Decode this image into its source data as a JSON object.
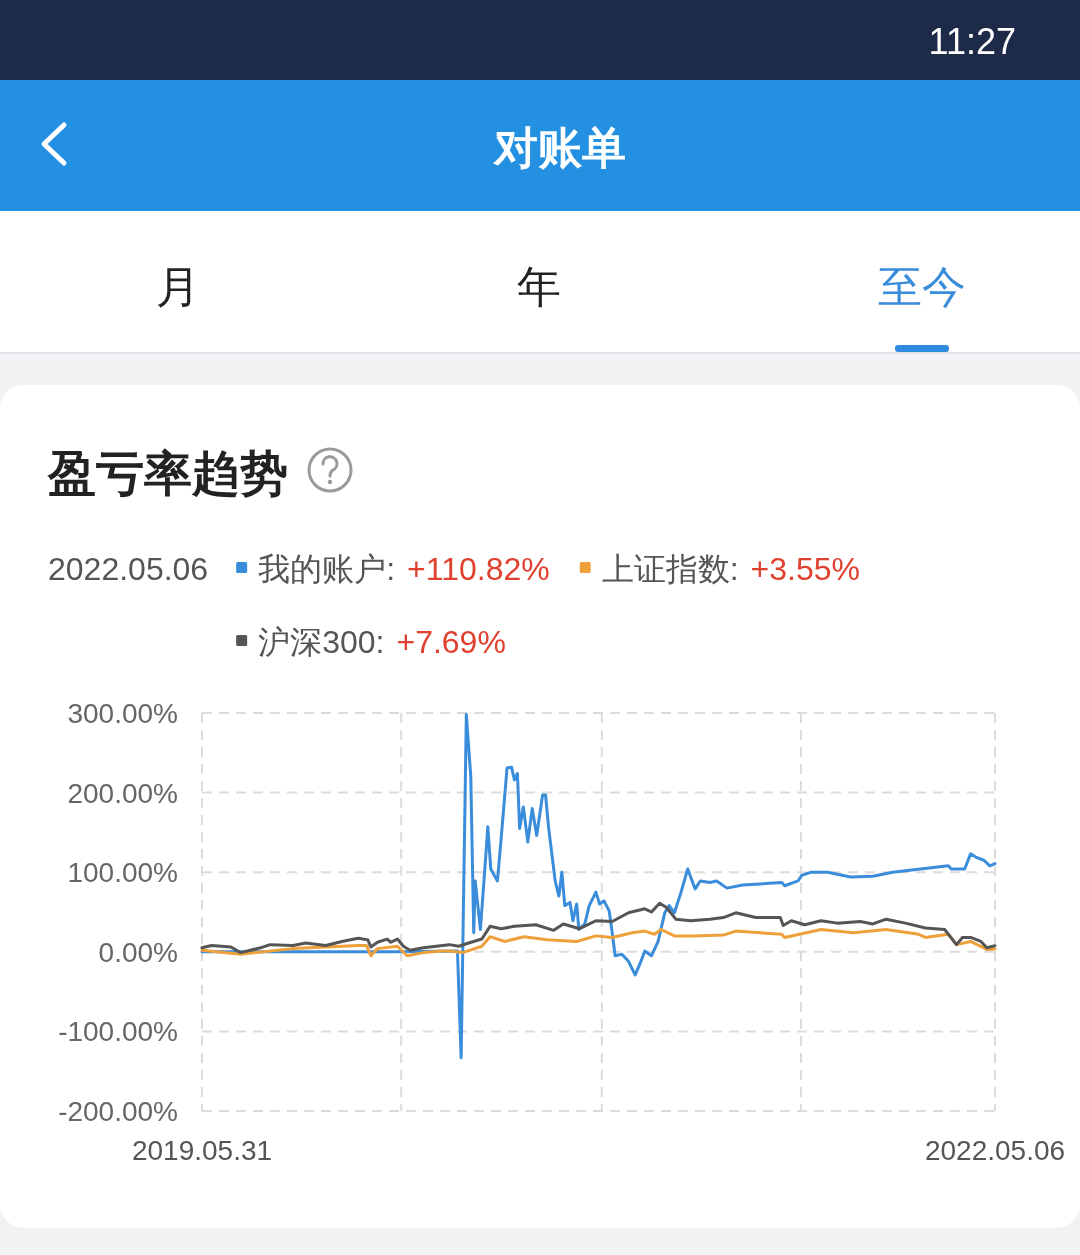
{
  "chart_data": {
    "type": "line",
    "title": "盈亏率趋势",
    "subtitle": "2022.05.06",
    "annotations": [
      "+110.82%",
      "+3.55%",
      "+7.69%",
      "11:27",
      "对账单",
      "月",
      "年",
      "至今"
    ],
    "xlim": [
      "2019-05-31",
      "2022-05-06"
    ],
    "xticks": [
      {
        "value": "2019-05-31",
        "label": "2019.05.31"
      },
      {
        "value": "2020-02-24",
        "label": null
      },
      {
        "value": "2020-11-21",
        "label": null
      },
      {
        "value": "2021-08-17",
        "label": null
      },
      {
        "value": "2022-05-06",
        "label": "2022.05.06"
      }
    ],
    "ylim": [
      -200,
      300
    ],
    "yticks": [
      {
        "value": -200,
        "label": "-200.00%"
      },
      {
        "value": -100,
        "label": "-100.00%"
      },
      {
        "value": 0,
        "label": "0.00%"
      },
      {
        "value": 100,
        "label": "100.00%"
      },
      {
        "value": 200,
        "label": "200.00%"
      },
      {
        "value": 300,
        "label": "300.00%"
      }
    ],
    "grid": true,
    "legend": "top left",
    "line_style": "solid",
    "series": [
      {
        "name": "我的账户:",
        "color": "#3a8ddb",
        "x": [
          "2019-05-31",
          "2019-10-07",
          "2020-02-16",
          "2020-05-10",
          "2020-05-15",
          "2020-05-22",
          "2020-05-28",
          "2020-06-01",
          "2020-06-03",
          "2020-06-10",
          "2020-06-17",
          "2020-06-20",
          "2020-06-24",
          "2020-07-03",
          "2020-07-08",
          "2020-07-16",
          "2020-07-22",
          "2020-07-26",
          "2020-07-30",
          "2020-08-02",
          "2020-08-07",
          "2020-08-13",
          "2020-08-19",
          "2020-08-25",
          "2020-09-02",
          "2020-09-06",
          "2020-09-10",
          "2020-09-19",
          "2020-09-24",
          "2020-09-28",
          "2020-10-02",
          "2020-10-09",
          "2020-10-13",
          "2020-10-18",
          "2020-10-21",
          "2020-10-29",
          "2020-11-04",
          "2020-11-13",
          "2020-11-18",
          "2020-11-24",
          "2020-12-01",
          "2020-12-05",
          "2020-12-09",
          "2020-12-18",
          "2020-12-27",
          "2021-01-05",
          "2021-01-12",
          "2021-01-18",
          "2021-01-27",
          "2021-02-05",
          "2021-02-14",
          "2021-02-20",
          "2021-02-27",
          "2021-03-08",
          "2021-03-17",
          "2021-03-27",
          "2021-04-03",
          "2021-04-16",
          "2021-04-25",
          "2021-05-09",
          "2021-05-30",
          "2021-07-22",
          "2021-07-26",
          "2021-08-13",
          "2021-08-18",
          "2021-08-31",
          "2021-09-22",
          "2021-10-23",
          "2021-11-22",
          "2021-12-19",
          "2022-03-04",
          "2022-03-08",
          "2022-03-26",
          "2022-04-03",
          "2022-04-10",
          "2022-04-21",
          "2022-04-29",
          "2022-05-06"
        ],
        "values": [
          0,
          0,
          0,
          1,
          -133,
          298,
          220,
          24,
          89,
          28,
          117,
          157,
          104,
          89,
          142,
          231,
          232,
          216,
          224,
          155,
          182,
          138,
          180,
          146,
          197,
          197,
          157,
          89,
          70,
          100,
          58,
          62,
          39,
          60,
          28,
          35,
          58,
          75,
          60,
          64,
          51,
          24,
          -5,
          -3,
          -12,
          -29,
          -14,
          1,
          -5,
          13,
          49,
          58,
          49,
          75,
          104,
          79,
          89,
          87,
          89,
          80,
          84,
          87,
          83,
          89,
          96,
          100,
          100,
          94,
          95,
          100,
          108,
          104,
          104,
          123,
          119,
          115,
          108,
          110.82
        ]
      },
      {
        "name": "上证指数:",
        "color": "#eea13a",
        "x": [
          "2019-05-31",
          "2019-07-22",
          "2019-10-01",
          "2019-12-28",
          "2020-01-08",
          "2020-01-14",
          "2020-01-23",
          "2020-02-19",
          "2020-03-03",
          "2020-03-25",
          "2020-04-20",
          "2020-04-29",
          "2020-05-17",
          "2020-06-12",
          "2020-06-23",
          "2020-07-13",
          "2020-08-08",
          "2020-09-08",
          "2020-10-18",
          "2020-11-13",
          "2020-12-05",
          "2021-01-01",
          "2021-01-18",
          "2021-01-31",
          "2021-02-09",
          "2021-02-27",
          "2021-03-25",
          "2021-05-04",
          "2021-05-21",
          "2021-07-22",
          "2021-07-26",
          "2021-09-13",
          "2021-10-27",
          "2021-12-10",
          "2022-01-23",
          "2022-02-01",
          "2022-03-04",
          "2022-03-15",
          "2022-04-03",
          "2022-04-25",
          "2022-05-06"
        ],
        "values": [
          2,
          -3,
          4,
          8,
          8,
          -5,
          4,
          7,
          -5,
          -1,
          1,
          1,
          -1,
          7,
          19,
          13,
          19,
          15,
          13,
          20,
          18,
          24,
          26,
          22,
          28,
          20,
          20,
          21,
          26,
          22,
          18,
          28,
          24,
          28,
          22,
          18,
          22,
          9,
          13,
          3,
          3.55
        ]
      },
      {
        "name": "沪深300:",
        "color": "#555555",
        "x": [
          "2019-05-31",
          "2019-06-13",
          "2019-07-09",
          "2019-07-22",
          "2019-08-18",
          "2019-08-31",
          "2019-10-01",
          "2019-10-18",
          "2019-11-14",
          "2019-12-06",
          "2019-12-28",
          "2020-01-10",
          "2020-01-14",
          "2020-01-23",
          "2020-02-05",
          "2020-02-10",
          "2020-02-19",
          "2020-02-27",
          "2020-03-07",
          "2020-03-25",
          "2020-04-20",
          "2020-04-29",
          "2020-05-12",
          "2020-05-25",
          "2020-06-12",
          "2020-06-23",
          "2020-07-08",
          "2020-07-26",
          "2020-08-24",
          "2020-09-17",
          "2020-09-30",
          "2020-10-22",
          "2020-11-13",
          "2020-12-05",
          "2020-12-27",
          "2021-01-18",
          "2021-01-27",
          "2021-02-07",
          "2021-02-16",
          "2021-03-01",
          "2021-03-21",
          "2021-04-16",
          "2021-05-04",
          "2021-05-21",
          "2021-06-17",
          "2021-07-20",
          "2021-07-24",
          "2021-08-04",
          "2021-08-22",
          "2021-09-13",
          "2021-10-05",
          "2021-11-05",
          "2021-11-22",
          "2021-12-10",
          "2022-01-05",
          "2022-02-01",
          "2022-02-27",
          "2022-03-15",
          "2022-03-23",
          "2022-04-03",
          "2022-04-17",
          "2022-04-25",
          "2022-05-06"
        ],
        "values": [
          5,
          8,
          6,
          -1,
          5,
          9,
          8,
          11,
          8,
          13,
          17,
          15,
          6,
          12,
          16,
          12,
          16,
          7,
          2,
          5,
          8,
          9,
          7,
          11,
          16,
          32,
          29,
          32,
          34,
          27,
          35,
          29,
          39,
          38,
          49,
          54,
          50,
          61,
          56,
          41,
          39,
          41,
          43,
          49,
          43,
          43,
          33,
          39,
          34,
          39,
          36,
          38,
          35,
          41,
          36,
          30,
          28,
          9,
          18,
          18,
          13,
          5,
          7.69
        ]
      }
    ]
  }
}
